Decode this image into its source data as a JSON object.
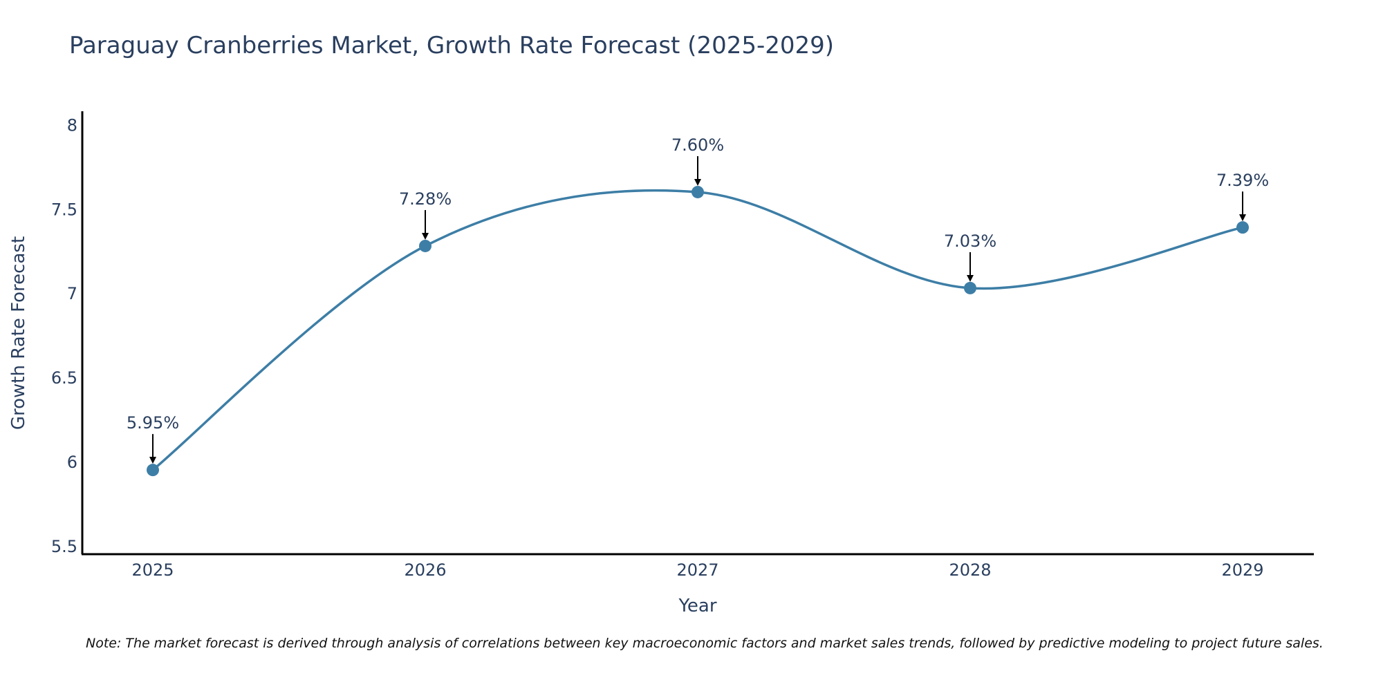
{
  "chart_data": {
    "type": "line",
    "title": "Paraguay Cranberries Market, Growth Rate Forecast (2025-2029)",
    "xlabel": "Year",
    "ylabel": "Growth Rate Forecast",
    "categories": [
      "2025",
      "2026",
      "2027",
      "2028",
      "2029"
    ],
    "series": [
      {
        "name": "Growth Rate Forecast",
        "values": [
          5.95,
          7.28,
          7.6,
          7.03,
          7.39
        ],
        "labels": [
          "5.95%",
          "7.28%",
          "7.60%",
          "7.03%",
          "7.39%"
        ],
        "color": "#3d7ea6"
      }
    ],
    "ylim": [
      5.45,
      8.08
    ],
    "yticks": [
      5.5,
      6,
      6.5,
      7,
      7.5,
      8
    ],
    "ytick_labels": [
      "5.5",
      "6",
      "6.5",
      "7",
      "7.5",
      "8"
    ],
    "grid": false,
    "line_shape": "spline",
    "note": "Note: The market forecast is derived through analysis of correlations between key macroeconomic factors and market sales trends, followed by predictive modeling to project future sales."
  }
}
